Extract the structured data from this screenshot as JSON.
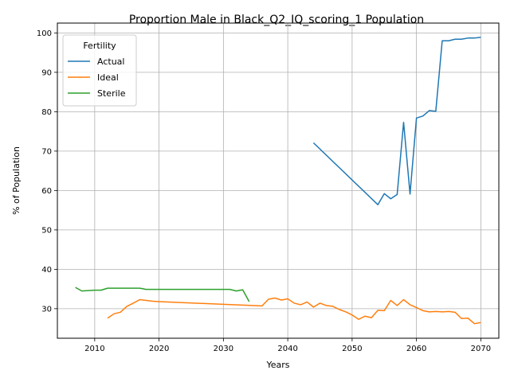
{
  "chart_data": {
    "type": "line",
    "title": "Proportion Male in Black_Q2_IQ_scoring_1 Population",
    "xlabel": "Years",
    "ylabel": "% of Population",
    "xlim": [
      2004.2,
      2072.8
    ],
    "ylim": [
      22.5,
      102.5
    ],
    "xticks": [
      2010,
      2020,
      2030,
      2040,
      2050,
      2060,
      2070
    ],
    "yticks": [
      30,
      40,
      50,
      60,
      70,
      80,
      90,
      100
    ],
    "grid": true,
    "legend": {
      "title": "Fertility",
      "placement": "top-left"
    },
    "series": [
      {
        "name": "Actual",
        "color": "#1f77b4",
        "x": [
          2044,
          2054,
          2055,
          2056,
          2057,
          2058,
          2059,
          2060,
          2061,
          2062,
          2063,
          2064,
          2065,
          2066,
          2067,
          2068,
          2069,
          2070
        ],
        "y": [
          72.1,
          56.4,
          59.2,
          57.9,
          59.0,
          77.3,
          59.1,
          78.4,
          78.9,
          80.3,
          80.1,
          98.0,
          98.0,
          98.4,
          98.4,
          98.7,
          98.7,
          98.9
        ]
      },
      {
        "name": "Ideal",
        "color": "#ff7f0e",
        "x": [
          2012,
          2013,
          2014,
          2015,
          2016,
          2017,
          2018,
          2019,
          2020,
          2030,
          2036,
          2037,
          2038,
          2039,
          2040,
          2041,
          2042,
          2043,
          2044,
          2045,
          2046,
          2047,
          2048,
          2049,
          2050,
          2051,
          2052,
          2053,
          2054,
          2055,
          2056,
          2057,
          2058,
          2059,
          2060,
          2061,
          2062,
          2063,
          2064,
          2065,
          2066,
          2067,
          2068,
          2069,
          2070
        ],
        "y": [
          27.6,
          28.7,
          29.1,
          30.6,
          31.4,
          32.3,
          32.1,
          31.9,
          31.8,
          31.1,
          30.7,
          32.4,
          32.7,
          32.2,
          32.5,
          31.4,
          31.0,
          31.7,
          30.4,
          31.4,
          30.8,
          30.6,
          29.8,
          29.2,
          28.4,
          27.3,
          28.1,
          27.7,
          29.6,
          29.5,
          32.1,
          30.8,
          32.3,
          31.0,
          30.3,
          29.5,
          29.2,
          29.3,
          29.2,
          29.3,
          29.1,
          27.5,
          27.6,
          26.2,
          26.5
        ]
      },
      {
        "name": "Sterile",
        "color": "#2ca02c",
        "x": [
          2007,
          2008,
          2009,
          2010,
          2011,
          2012,
          2013,
          2014,
          2015,
          2016,
          2017,
          2018,
          2019,
          2020,
          2030,
          2031,
          2032,
          2033,
          2034
        ],
        "y": [
          35.4,
          34.5,
          34.6,
          34.7,
          34.7,
          35.2,
          35.2,
          35.2,
          35.2,
          35.2,
          35.2,
          34.9,
          34.9,
          34.9,
          34.9,
          34.9,
          34.5,
          34.8,
          31.8
        ]
      }
    ]
  }
}
